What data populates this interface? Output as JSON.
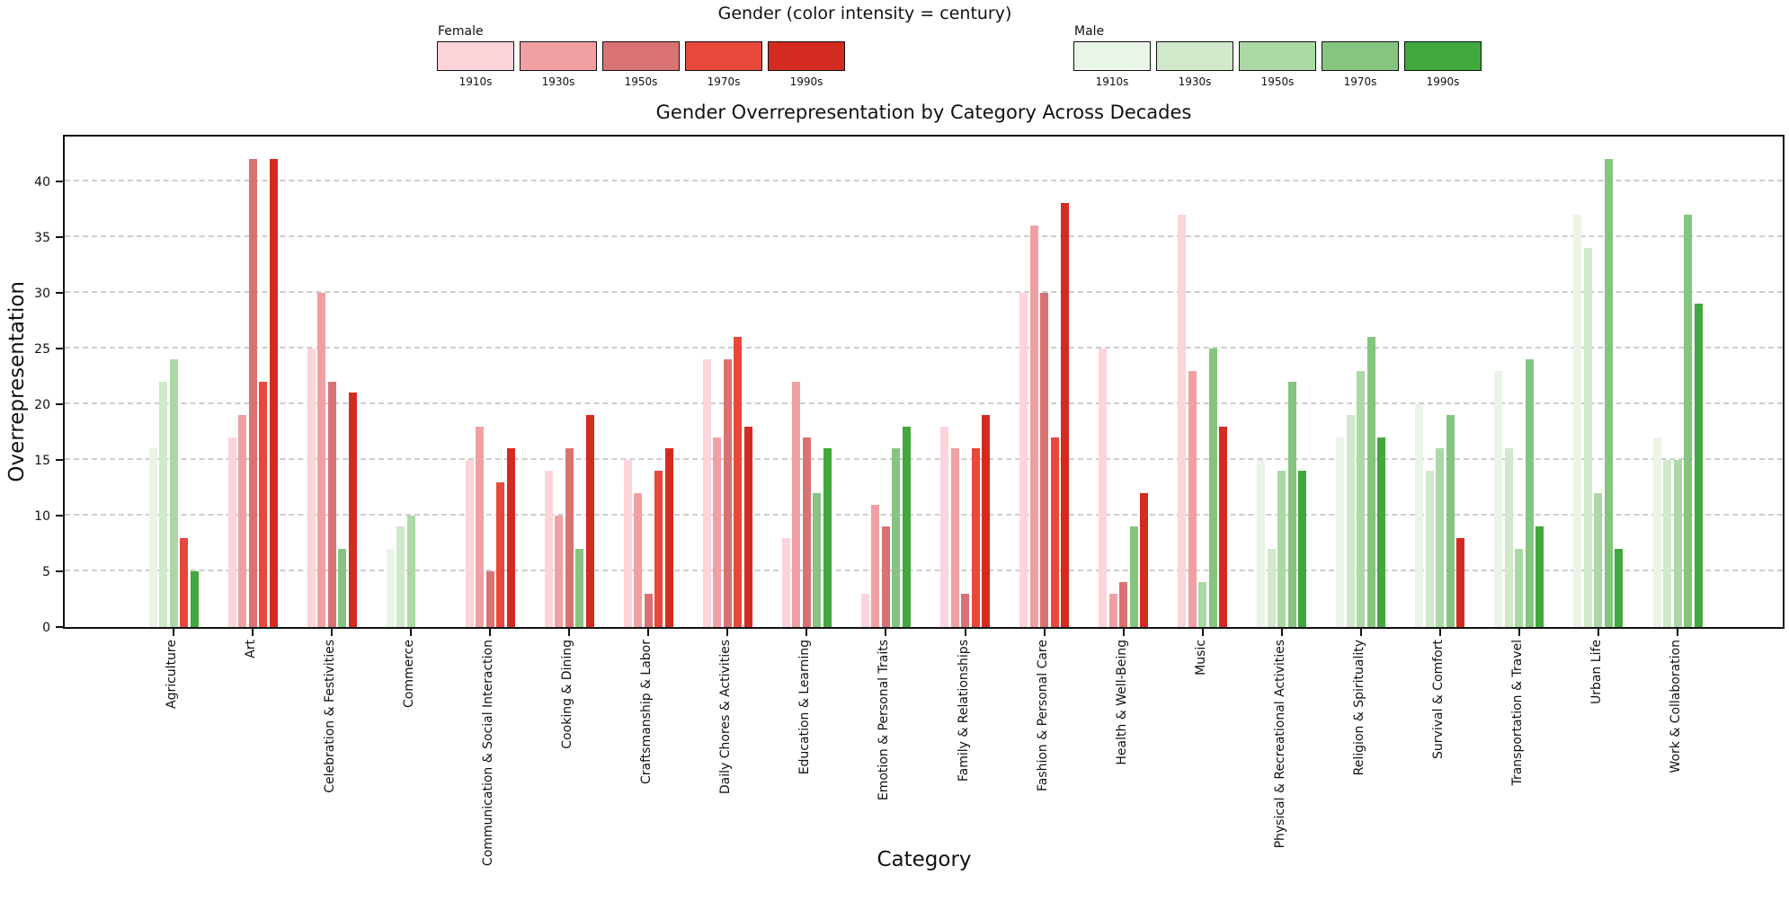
{
  "legend": {
    "title": "Gender (color intensity = century)",
    "groups": [
      {
        "label": "Female",
        "key": "female"
      },
      {
        "label": "Male",
        "key": "male"
      }
    ]
  },
  "chart_data": {
    "type": "bar",
    "title": "Gender Overrepresentation by Category Across Decades",
    "xlabel": "Category",
    "ylabel": "Overrepresentation",
    "ylim": [
      0,
      44
    ],
    "yticks": [
      0,
      5,
      10,
      15,
      20,
      25,
      30,
      35,
      40
    ],
    "grid": "horizontal-dashed",
    "decades": [
      "1910s",
      "1930s",
      "1950s",
      "1970s",
      "1990s"
    ],
    "colors": {
      "female": [
        "#fcd4d9",
        "#f0a0a2",
        "#d97373",
        "#e8483c",
        "#d42b20"
      ],
      "male": [
        "#e9f5e6",
        "#cfe9ca",
        "#aad9a4",
        "#85c57f",
        "#40a83c"
      ]
    },
    "categories": [
      {
        "name": "Agriculture",
        "bars": [
          {
            "decade": "1910s",
            "gender": "male",
            "value": 16
          },
          {
            "decade": "1930s",
            "gender": "male",
            "value": 22
          },
          {
            "decade": "1950s",
            "gender": "male",
            "value": 24
          },
          {
            "decade": "1970s",
            "gender": "female",
            "value": 8
          },
          {
            "decade": "1990s",
            "gender": "male",
            "value": 5
          }
        ]
      },
      {
        "name": "Art",
        "bars": [
          {
            "decade": "1910s",
            "gender": "female",
            "value": 17
          },
          {
            "decade": "1930s",
            "gender": "female",
            "value": 19
          },
          {
            "decade": "1950s",
            "gender": "female",
            "value": 42
          },
          {
            "decade": "1970s",
            "gender": "female",
            "value": 22
          },
          {
            "decade": "1990s",
            "gender": "female",
            "value": 42
          }
        ]
      },
      {
        "name": "Celebration & Festivities",
        "bars": [
          {
            "decade": "1910s",
            "gender": "female",
            "value": 25
          },
          {
            "decade": "1930s",
            "gender": "female",
            "value": 30
          },
          {
            "decade": "1950s",
            "gender": "female",
            "value": 22
          },
          {
            "decade": "1970s",
            "gender": "male",
            "value": 7
          },
          {
            "decade": "1990s",
            "gender": "female",
            "value": 21
          }
        ]
      },
      {
        "name": "Commerce",
        "bars": [
          {
            "decade": "1910s",
            "gender": "male",
            "value": 7
          },
          {
            "decade": "1930s",
            "gender": "male",
            "value": 9
          },
          {
            "decade": "1950s",
            "gender": "male",
            "value": 10
          },
          {
            "decade": "1970s",
            "gender": null,
            "value": 0
          },
          {
            "decade": "1990s",
            "gender": null,
            "value": 0
          }
        ]
      },
      {
        "name": "Communication & Social Interaction",
        "bars": [
          {
            "decade": "1910s",
            "gender": "female",
            "value": 15
          },
          {
            "decade": "1930s",
            "gender": "female",
            "value": 18
          },
          {
            "decade": "1950s",
            "gender": "female",
            "value": 5
          },
          {
            "decade": "1970s",
            "gender": "female",
            "value": 13
          },
          {
            "decade": "1990s",
            "gender": "female",
            "value": 16
          }
        ]
      },
      {
        "name": "Cooking & Dining",
        "bars": [
          {
            "decade": "1910s",
            "gender": "female",
            "value": 14
          },
          {
            "decade": "1930s",
            "gender": "female",
            "value": 10
          },
          {
            "decade": "1950s",
            "gender": "female",
            "value": 16
          },
          {
            "decade": "1970s",
            "gender": "male",
            "value": 7
          },
          {
            "decade": "1990s",
            "gender": "female",
            "value": 19
          }
        ]
      },
      {
        "name": "Craftsmanship & Labor",
        "bars": [
          {
            "decade": "1910s",
            "gender": "female",
            "value": 15
          },
          {
            "decade": "1930s",
            "gender": "female",
            "value": 12
          },
          {
            "decade": "1950s",
            "gender": "female",
            "value": 3
          },
          {
            "decade": "1970s",
            "gender": "female",
            "value": 14
          },
          {
            "decade": "1990s",
            "gender": "female",
            "value": 16
          }
        ]
      },
      {
        "name": "Daily Chores & Activities",
        "bars": [
          {
            "decade": "1910s",
            "gender": "female",
            "value": 24
          },
          {
            "decade": "1930s",
            "gender": "female",
            "value": 17
          },
          {
            "decade": "1950s",
            "gender": "female",
            "value": 24
          },
          {
            "decade": "1970s",
            "gender": "female",
            "value": 26
          },
          {
            "decade": "1990s",
            "gender": "female",
            "value": 18
          }
        ]
      },
      {
        "name": "Education & Learning",
        "bars": [
          {
            "decade": "1910s",
            "gender": "female",
            "value": 8
          },
          {
            "decade": "1930s",
            "gender": "female",
            "value": 22
          },
          {
            "decade": "1950s",
            "gender": "female",
            "value": 17
          },
          {
            "decade": "1970s",
            "gender": "male",
            "value": 12
          },
          {
            "decade": "1990s",
            "gender": "male",
            "value": 16
          }
        ]
      },
      {
        "name": "Emotion & Personal Traits",
        "bars": [
          {
            "decade": "1910s",
            "gender": "female",
            "value": 3
          },
          {
            "decade": "1930s",
            "gender": "female",
            "value": 11
          },
          {
            "decade": "1950s",
            "gender": "female",
            "value": 9
          },
          {
            "decade": "1970s",
            "gender": "male",
            "value": 16
          },
          {
            "decade": "1990s",
            "gender": "male",
            "value": 18
          }
        ]
      },
      {
        "name": "Family & Relationships",
        "bars": [
          {
            "decade": "1910s",
            "gender": "female",
            "value": 18
          },
          {
            "decade": "1930s",
            "gender": "female",
            "value": 16
          },
          {
            "decade": "1950s",
            "gender": "female",
            "value": 3
          },
          {
            "decade": "1970s",
            "gender": "female",
            "value": 16
          },
          {
            "decade": "1990s",
            "gender": "female",
            "value": 19
          }
        ]
      },
      {
        "name": "Fashion & Personal Care",
        "bars": [
          {
            "decade": "1910s",
            "gender": "female",
            "value": 30
          },
          {
            "decade": "1930s",
            "gender": "female",
            "value": 36
          },
          {
            "decade": "1950s",
            "gender": "female",
            "value": 30
          },
          {
            "decade": "1970s",
            "gender": "female",
            "value": 17
          },
          {
            "decade": "1990s",
            "gender": "female",
            "value": 38
          }
        ]
      },
      {
        "name": "Health & Well-Being",
        "bars": [
          {
            "decade": "1910s",
            "gender": "female",
            "value": 25
          },
          {
            "decade": "1930s",
            "gender": "female",
            "value": 3
          },
          {
            "decade": "1950s",
            "gender": "female",
            "value": 4
          },
          {
            "decade": "1970s",
            "gender": "male",
            "value": 9
          },
          {
            "decade": "1990s",
            "gender": "female",
            "value": 12
          }
        ]
      },
      {
        "name": "Music",
        "bars": [
          {
            "decade": "1910s",
            "gender": "female",
            "value": 37
          },
          {
            "decade": "1930s",
            "gender": "female",
            "value": 23
          },
          {
            "decade": "1950s",
            "gender": "male",
            "value": 4
          },
          {
            "decade": "1970s",
            "gender": "male",
            "value": 25
          },
          {
            "decade": "1990s",
            "gender": "female",
            "value": 18
          }
        ]
      },
      {
        "name": "Physical & Recreational Activities",
        "bars": [
          {
            "decade": "1910s",
            "gender": "male",
            "value": 15
          },
          {
            "decade": "1930s",
            "gender": "male",
            "value": 7
          },
          {
            "decade": "1950s",
            "gender": "male",
            "value": 14
          },
          {
            "decade": "1970s",
            "gender": "male",
            "value": 22
          },
          {
            "decade": "1990s",
            "gender": "male",
            "value": 14
          }
        ]
      },
      {
        "name": "Religion & Spirituality",
        "bars": [
          {
            "decade": "1910s",
            "gender": "male",
            "value": 17
          },
          {
            "decade": "1930s",
            "gender": "male",
            "value": 19
          },
          {
            "decade": "1950s",
            "gender": "male",
            "value": 23
          },
          {
            "decade": "1970s",
            "gender": "male",
            "value": 26
          },
          {
            "decade": "1990s",
            "gender": "male",
            "value": 17
          }
        ]
      },
      {
        "name": "Survival & Comfort",
        "bars": [
          {
            "decade": "1910s",
            "gender": "male",
            "value": 20
          },
          {
            "decade": "1930s",
            "gender": "male",
            "value": 14
          },
          {
            "decade": "1950s",
            "gender": "male",
            "value": 16
          },
          {
            "decade": "1970s",
            "gender": "male",
            "value": 19
          },
          {
            "decade": "1990s",
            "gender": "female",
            "value": 8
          }
        ]
      },
      {
        "name": "Transportation & Travel",
        "bars": [
          {
            "decade": "1910s",
            "gender": "male",
            "value": 23
          },
          {
            "decade": "1930s",
            "gender": "male",
            "value": 16
          },
          {
            "decade": "1950s",
            "gender": "male",
            "value": 7
          },
          {
            "decade": "1970s",
            "gender": "male",
            "value": 24
          },
          {
            "decade": "1990s",
            "gender": "male",
            "value": 9
          }
        ]
      },
      {
        "name": "Urban Life",
        "bars": [
          {
            "decade": "1910s",
            "gender": "male",
            "value": 37
          },
          {
            "decade": "1930s",
            "gender": "male",
            "value": 34
          },
          {
            "decade": "1950s",
            "gender": "male",
            "value": 12
          },
          {
            "decade": "1970s",
            "gender": "male",
            "value": 42
          },
          {
            "decade": "1990s",
            "gender": "male",
            "value": 7
          }
        ]
      },
      {
        "name": "Work & Collaboration",
        "bars": [
          {
            "decade": "1910s",
            "gender": "male",
            "value": 17
          },
          {
            "decade": "1930s",
            "gender": "male",
            "value": 15
          },
          {
            "decade": "1950s",
            "gender": "male",
            "value": 15
          },
          {
            "decade": "1970s",
            "gender": "male",
            "value": 37
          },
          {
            "decade": "1990s",
            "gender": "male",
            "value": 29
          }
        ]
      }
    ]
  }
}
